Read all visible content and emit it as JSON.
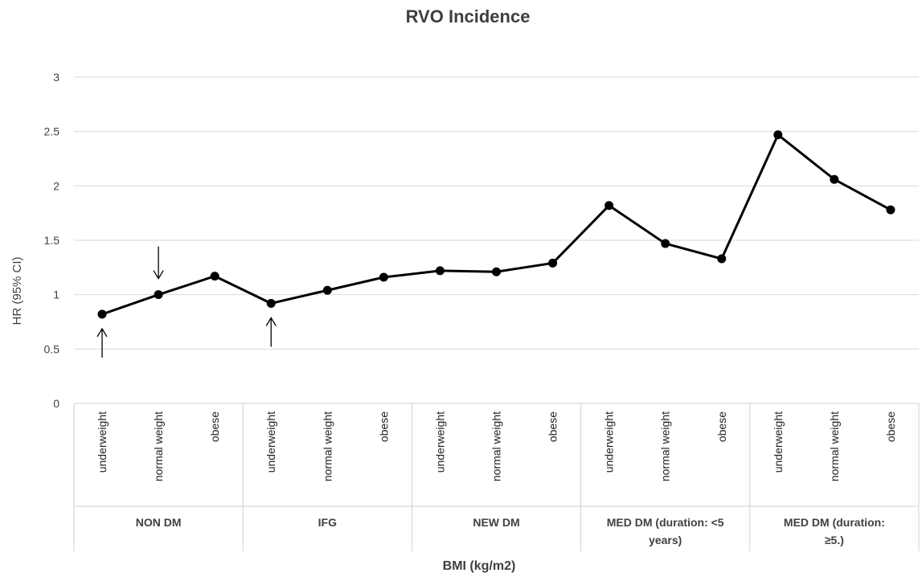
{
  "chart_data": {
    "type": "line",
    "title": "RVO Incidence",
    "xlabel": "BMI (kg/m2)",
    "ylabel": "HR (95% CI)",
    "ylim": [
      0,
      3
    ],
    "yticks": [
      "0",
      "0.5",
      "1",
      "1.5",
      "2",
      "2.5",
      "3"
    ],
    "grid": true,
    "groups": [
      {
        "label_lines": [
          "NON DM"
        ],
        "categories": [
          "underweight",
          "normal weight",
          "obese"
        ]
      },
      {
        "label_lines": [
          "IFG"
        ],
        "categories": [
          "underweight",
          "normal weight",
          "obese"
        ]
      },
      {
        "label_lines": [
          "NEW DM"
        ],
        "categories": [
          "underweight",
          "normal weight",
          "obese"
        ]
      },
      {
        "label_lines": [
          "MED DM (duration: <5",
          "years)"
        ],
        "categories": [
          "underweight",
          "normal weight",
          "obese"
        ]
      },
      {
        "label_lines": [
          "MED DM (duration:",
          "≥5.)"
        ],
        "categories": [
          "underweight",
          "normal weight",
          "obese"
        ]
      }
    ],
    "series": [
      {
        "values": [
          0.82,
          1.0,
          1.17,
          0.92,
          1.04,
          1.16,
          1.22,
          1.21,
          1.29,
          1.82,
          1.47,
          1.33,
          2.47,
          2.06,
          1.78
        ]
      }
    ],
    "annotations": [
      {
        "type": "arrow-up",
        "category_index": 0
      },
      {
        "type": "arrow-down",
        "category_index": 1
      },
      {
        "type": "arrow-up",
        "category_index": 3
      }
    ]
  }
}
